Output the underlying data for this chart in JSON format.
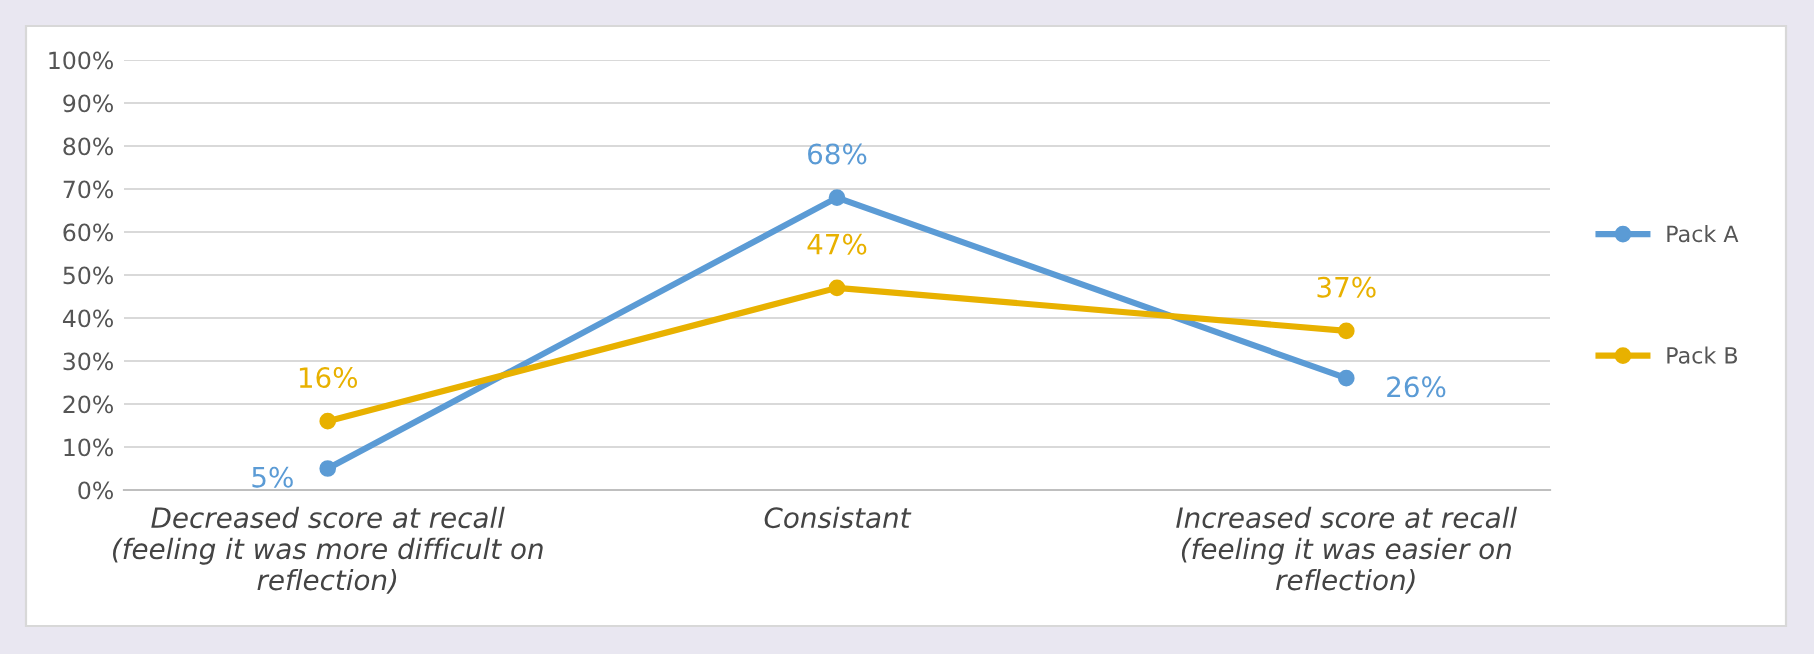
{
  "chart_data": {
    "type": "line",
    "categories": [
      "Decreased score at recall\n(feeling it was more difficult on\nreflection)",
      "Consistant",
      "Increased score at recall\n(feeling it was easier on\nreflection)"
    ],
    "series": [
      {
        "name": "Pack A",
        "color": "#5b9bd5",
        "values": [
          5,
          68,
          26
        ],
        "value_labels": [
          "5%",
          "68%",
          "26%"
        ]
      },
      {
        "name": "Pack B",
        "color": "#e8b100",
        "values": [
          16,
          47,
          37
        ],
        "value_labels": [
          "16%",
          "47%",
          "37%"
        ]
      }
    ],
    "ylim": [
      0,
      100
    ],
    "yticks": [
      {
        "value": 0,
        "label": "0%"
      },
      {
        "value": 10,
        "label": "10%"
      },
      {
        "value": 20,
        "label": "20%"
      },
      {
        "value": 30,
        "label": "30%"
      },
      {
        "value": 40,
        "label": "40%"
      },
      {
        "value": 50,
        "label": "50%"
      },
      {
        "value": 60,
        "label": "60%"
      },
      {
        "value": 70,
        "label": "70%"
      },
      {
        "value": 80,
        "label": "80%"
      },
      {
        "value": 90,
        "label": "90%"
      },
      {
        "value": 100,
        "label": "100%"
      }
    ],
    "grid": "y",
    "legend": "right",
    "marker": "circle",
    "line_style": "solid"
  }
}
